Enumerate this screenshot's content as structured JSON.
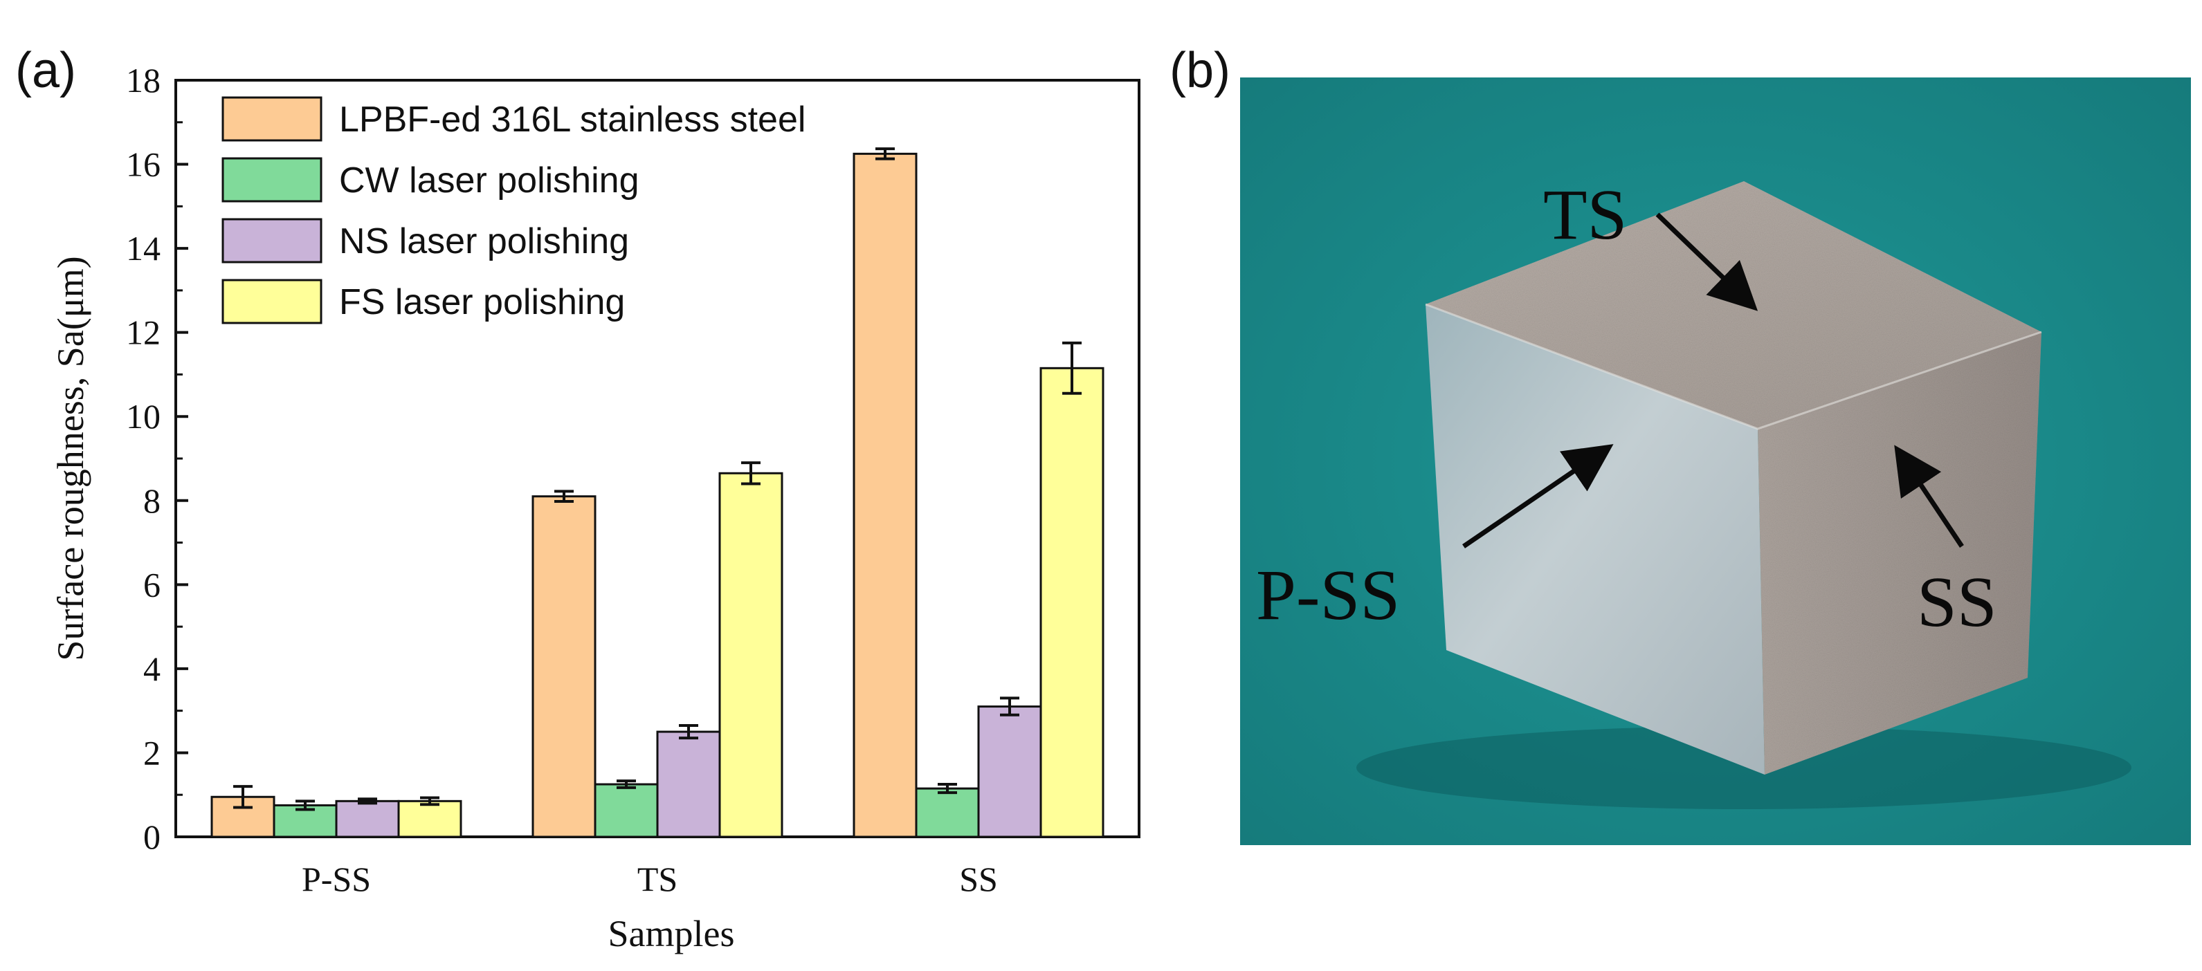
{
  "panel_a": {
    "label": "(a)"
  },
  "panel_b": {
    "label": "(b)"
  },
  "chart_data": {
    "type": "bar",
    "title": "",
    "xlabel": "Samples",
    "ylabel": "Surface roughness, Sa(μm)",
    "ylim": [
      0,
      18
    ],
    "yticks": [
      "0",
      "2",
      "4",
      "6",
      "8",
      "10",
      "12",
      "14",
      "16",
      "18"
    ],
    "categories": [
      "P-SS",
      "TS",
      "SS"
    ],
    "legend_position": "top-left",
    "grid": false,
    "series": [
      {
        "name": "LPBF-ed 316L stainless steel",
        "color": "#FDCB94",
        "values": [
          0.95,
          8.1,
          16.25
        ],
        "errors": [
          0.25,
          0.12,
          0.12
        ]
      },
      {
        "name": "CW laser polishing",
        "color": "#80DA9A",
        "values": [
          0.75,
          1.25,
          1.15
        ],
        "errors": [
          0.1,
          0.08,
          0.1
        ]
      },
      {
        "name": "NS laser polishing",
        "color": "#C9B3D8",
        "values": [
          0.85,
          2.5,
          3.1
        ],
        "errors": [
          0.05,
          0.15,
          0.2
        ]
      },
      {
        "name": "FS laser polishing",
        "color": "#FFFF99",
        "values": [
          0.85,
          8.65,
          11.15
        ],
        "errors": [
          0.08,
          0.25,
          0.6
        ]
      }
    ]
  },
  "photo": {
    "labels": {
      "top": "TS",
      "front": "P-SS",
      "side": "SS"
    },
    "colors": {
      "background": "#1B8C8B",
      "top_face": "#ADA49E",
      "front_face": "#A8B5BB",
      "side_face": "#A29993"
    }
  }
}
